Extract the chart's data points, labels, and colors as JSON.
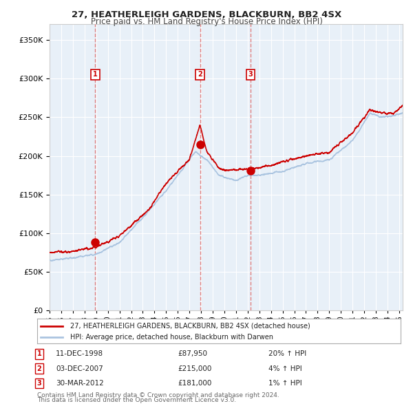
{
  "title": "27, HEATHERLEIGH GARDENS, BLACKBURN, BB2 4SX",
  "subtitle": "Price paid vs. HM Land Registry's House Price Index (HPI)",
  "legend_line1": "27, HEATHERLEIGH GARDENS, BLACKBURN, BB2 4SX (detached house)",
  "legend_line2": "HPI: Average price, detached house, Blackburn with Darwen",
  "footer1": "Contains HM Land Registry data © Crown copyright and database right 2024.",
  "footer2": "This data is licensed under the Open Government Licence v3.0.",
  "hpi_color": "#aac4e0",
  "price_color": "#cc0000",
  "marker_color": "#cc0000",
  "bg_color": "#e8f0f8",
  "grid_color": "#ffffff",
  "dashed_color": "#e08080",
  "purchases": [
    {
      "num": 1,
      "date_x": 1998.92,
      "price": 87950,
      "label": "1",
      "date_str": "11-DEC-1998",
      "price_str": "£87,950",
      "hpi_str": "20% ↑ HPI"
    },
    {
      "num": 2,
      "date_x": 2007.92,
      "price": 215000,
      "label": "2",
      "date_str": "03-DEC-2007",
      "price_str": "£215,000",
      "hpi_str": "4% ↑ HPI"
    },
    {
      "num": 3,
      "date_x": 2012.25,
      "price": 181000,
      "label": "3",
      "date_str": "30-MAR-2012",
      "price_str": "£181,000",
      "hpi_str": "1% ↑ HPI"
    }
  ],
  "ylim": [
    0,
    370000
  ],
  "xlim_start": 1995.0,
  "xlim_end": 2025.3,
  "yticks": [
    0,
    50000,
    100000,
    150000,
    200000,
    250000,
    300000,
    350000
  ]
}
